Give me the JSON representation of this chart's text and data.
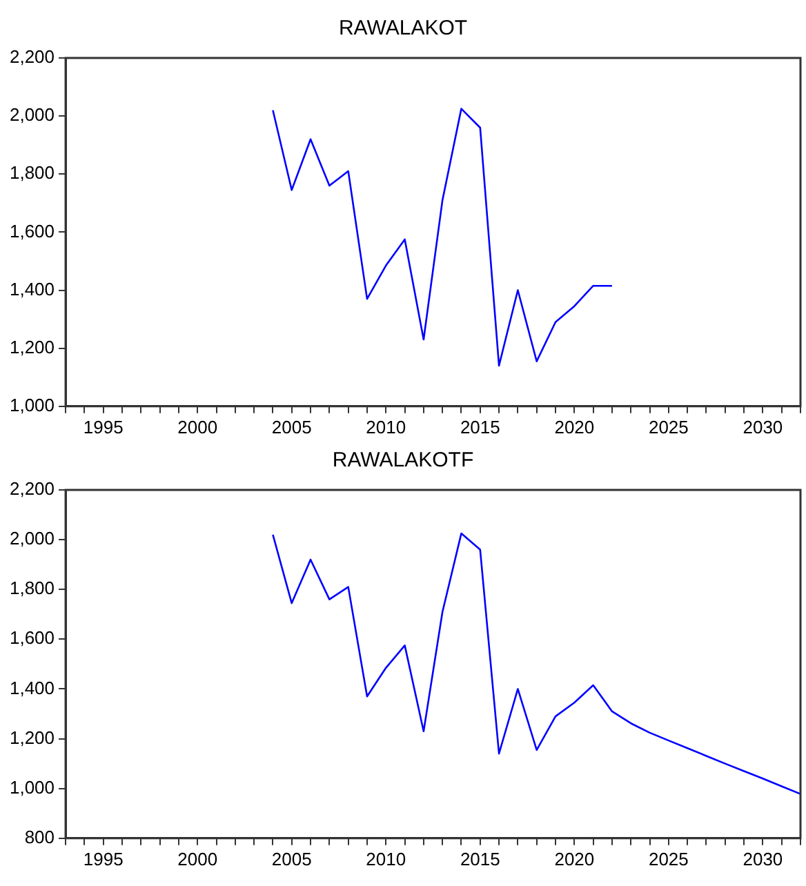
{
  "chart_data": [
    {
      "type": "line",
      "title": "RAWALAKOT",
      "x": [
        2004,
        2005,
        2006,
        2007,
        2008,
        2009,
        2010,
        2011,
        2012,
        2013,
        2014,
        2015,
        2016,
        2017,
        2018,
        2019,
        2020,
        2021,
        2022
      ],
      "series": [
        {
          "color": "#0000ff",
          "values": [
            2020,
            1745,
            1920,
            1760,
            1810,
            1370,
            1485,
            1575,
            1230,
            1710,
            2025,
            1960,
            1140,
            1400,
            1155,
            1290,
            1345,
            1415,
            1415
          ]
        }
      ],
      "xlim": [
        1993,
        2032
      ],
      "xticks": [
        1995,
        2000,
        2005,
        2010,
        2015,
        2020,
        2025,
        2030
      ],
      "ylim": [
        1000,
        2200
      ],
      "yticks": [
        {
          "value": 1000,
          "label": "1,000"
        },
        {
          "value": 1200,
          "label": "1,200"
        },
        {
          "value": 1400,
          "label": "1,400"
        },
        {
          "value": 1600,
          "label": "1,600"
        },
        {
          "value": 1800,
          "label": "1,800"
        },
        {
          "value": 2000,
          "label": "2,000"
        },
        {
          "value": 2200,
          "label": "2,200"
        }
      ],
      "grid": false,
      "marker": "none",
      "line_style": "solid",
      "legend": false
    },
    {
      "type": "line",
      "title": "RAWALAKOTF",
      "x": [
        2004,
        2005,
        2006,
        2007,
        2008,
        2009,
        2010,
        2011,
        2012,
        2013,
        2014,
        2015,
        2016,
        2017,
        2018,
        2019,
        2020,
        2021,
        2022,
        2023,
        2024,
        2025,
        2026,
        2027,
        2028,
        2029,
        2030,
        2031,
        2032
      ],
      "series": [
        {
          "color": "#0000ff",
          "values": [
            2020,
            1745,
            1920,
            1760,
            1810,
            1370,
            1485,
            1575,
            1230,
            1710,
            2025,
            1960,
            1140,
            1400,
            1155,
            1290,
            1345,
            1415,
            1310,
            1262,
            1224,
            1193,
            1162,
            1131,
            1100,
            1070,
            1040,
            1009,
            978
          ]
        }
      ],
      "xlim": [
        1993,
        2032
      ],
      "xticks": [
        1995,
        2000,
        2005,
        2010,
        2015,
        2020,
        2025,
        2030
      ],
      "ylim": [
        800,
        2200
      ],
      "yticks": [
        {
          "value": 800,
          "label": "800"
        },
        {
          "value": 1000,
          "label": "1,000"
        },
        {
          "value": 1200,
          "label": "1,200"
        },
        {
          "value": 1400,
          "label": "1,400"
        },
        {
          "value": 1600,
          "label": "1,600"
        },
        {
          "value": 1800,
          "label": "1,800"
        },
        {
          "value": 2000,
          "label": "2,000"
        },
        {
          "value": 2200,
          "label": "2,200"
        }
      ],
      "grid": false,
      "marker": "none",
      "line_style": "solid",
      "legend": false
    }
  ]
}
